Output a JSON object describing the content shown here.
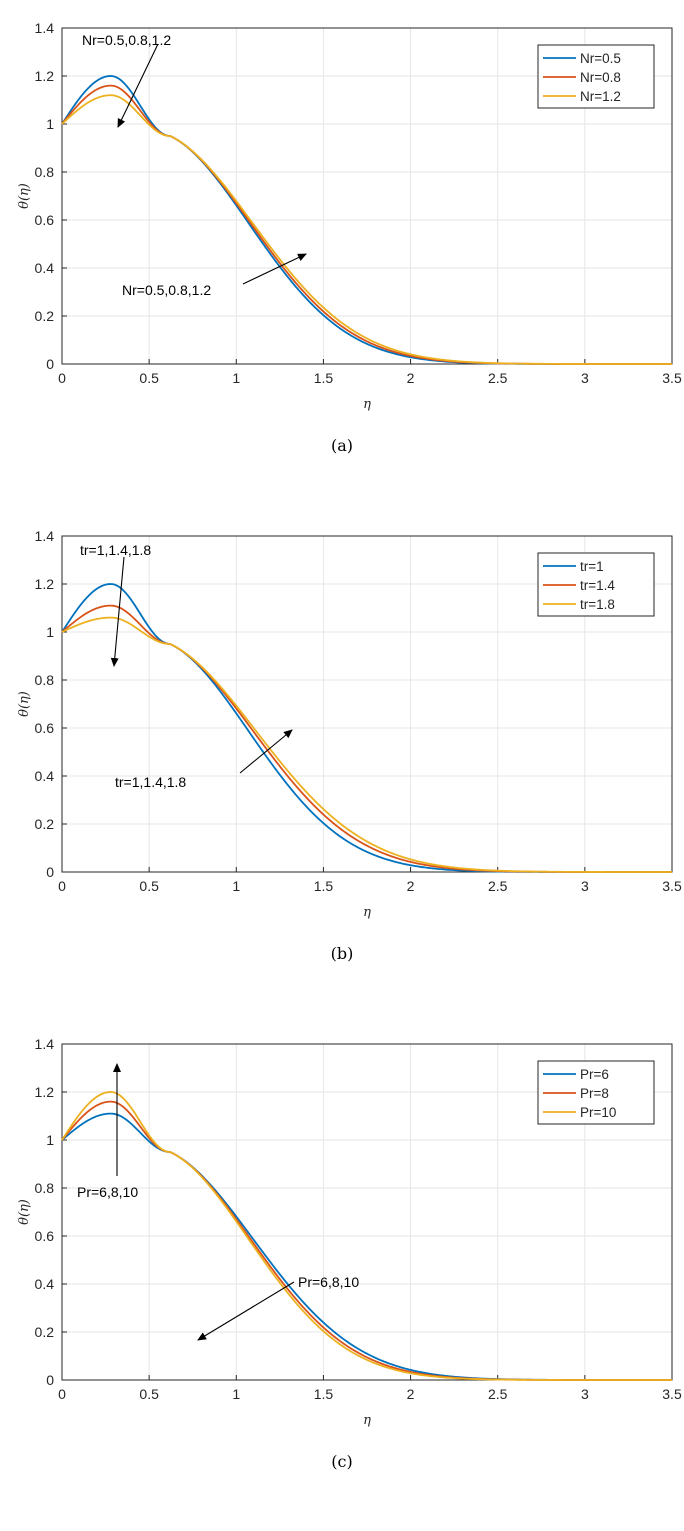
{
  "chart_data": [
    {
      "type": "line",
      "caption": "(a)",
      "xlabel": "η",
      "ylabel": "θ(η)",
      "xlim": [
        0,
        3.5
      ],
      "ylim": [
        0,
        1.4
      ],
      "xticks": [
        "0",
        "0.5",
        "1",
        "1.5",
        "2",
        "2.5",
        "3",
        "3.5"
      ],
      "yticks": [
        "0",
        "0.2",
        "0.4",
        "0.6",
        "0.8",
        "1",
        "1.2",
        "1.4"
      ],
      "grid": true,
      "legend_position": "top-right",
      "series": [
        {
          "name": "Nr=0.5",
          "color": "#0072BD",
          "peak": 1.2
        },
        {
          "name": "Nr=0.8",
          "color": "#D95319",
          "peak": 1.16
        },
        {
          "name": "Nr=1.2",
          "color": "#EDB120",
          "peak": 1.12
        }
      ],
      "annotations": [
        {
          "text": "Nr=0.5,0.8,1.2",
          "arrow": "down"
        },
        {
          "text": "Nr=0.5,0.8,1.2",
          "arrow": "up"
        }
      ]
    },
    {
      "type": "line",
      "caption": "(b)",
      "xlabel": "η",
      "ylabel": "θ(η)",
      "xlim": [
        0,
        3.5
      ],
      "ylim": [
        0,
        1.4
      ],
      "xticks": [
        "0",
        "0.5",
        "1",
        "1.5",
        "2",
        "2.5",
        "3",
        "3.5"
      ],
      "yticks": [
        "0",
        "0.2",
        "0.4",
        "0.6",
        "0.8",
        "1",
        "1.2",
        "1.4"
      ],
      "grid": true,
      "legend_position": "top-right",
      "series": [
        {
          "name": "tr=1",
          "color": "#0072BD",
          "peak": 1.2
        },
        {
          "name": "tr=1.4",
          "color": "#D95319",
          "peak": 1.11
        },
        {
          "name": "tr=1.8",
          "color": "#EDB120",
          "peak": 1.06
        }
      ],
      "annotations": [
        {
          "text": "tr=1,1.4,1.8",
          "arrow": "down"
        },
        {
          "text": "tr=1,1.4,1.8",
          "arrow": "up"
        }
      ]
    },
    {
      "type": "line",
      "caption": "(c)",
      "xlabel": "η",
      "ylabel": "θ(η)",
      "xlim": [
        0,
        3.5
      ],
      "ylim": [
        0,
        1.4
      ],
      "xticks": [
        "0",
        "0.5",
        "1",
        "1.5",
        "2",
        "2.5",
        "3",
        "3.5"
      ],
      "yticks": [
        "0",
        "0.2",
        "0.4",
        "0.6",
        "0.8",
        "1",
        "1.2",
        "1.4"
      ],
      "grid": true,
      "legend_position": "top-right",
      "series": [
        {
          "name": "Pr=6",
          "color": "#0072BD",
          "peak": 1.11
        },
        {
          "name": "Pr=8",
          "color": "#D95319",
          "peak": 1.16
        },
        {
          "name": "Pr=10",
          "color": "#EDB120",
          "peak": 1.2
        }
      ],
      "annotations": [
        {
          "text": "Pr=6,8,10",
          "arrow": "up"
        },
        {
          "text": "Pr=6,8,10",
          "arrow": "down"
        }
      ]
    }
  ]
}
